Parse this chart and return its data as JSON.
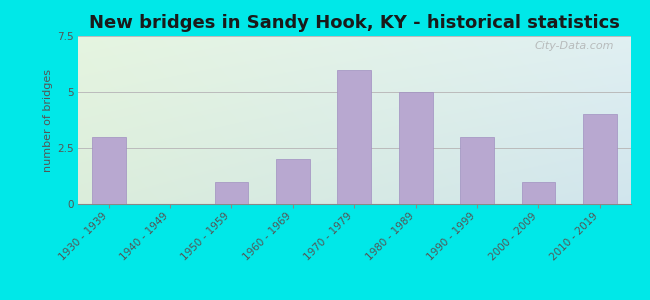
{
  "title": "New bridges in Sandy Hook, KY - historical statistics",
  "categories": [
    "1930 - 1939",
    "1940 - 1949",
    "1950 - 1959",
    "1960 - 1969",
    "1970 - 1979",
    "1980 - 1989",
    "1990 - 1999",
    "2000 - 2009",
    "2010 - 2019"
  ],
  "values": [
    3,
    0,
    1,
    2,
    6,
    5,
    3,
    1,
    4
  ],
  "bar_color": "#b8a8d0",
  "bar_edge_color": "#a090c0",
  "ylabel": "number of bridges",
  "ylim": [
    0,
    7.5
  ],
  "yticks": [
    0,
    2.5,
    5,
    7.5
  ],
  "background_outer": "#00e8e8",
  "bg_top_left": "#e6f5e0",
  "bg_top_right": "#d8eef0",
  "bg_bottom_left": "#d8eedc",
  "bg_bottom_right": "#c0dde8",
  "grid_color": "#bbbbbb",
  "title_fontsize": 13,
  "ylabel_fontsize": 8,
  "tick_fontsize": 7.5,
  "watermark_text": "City-Data.com"
}
